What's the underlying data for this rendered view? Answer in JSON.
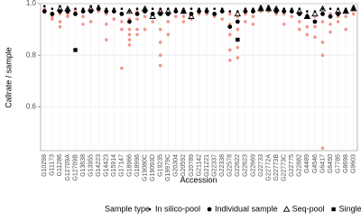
{
  "chart_data": {
    "type": "scatter",
    "y_label": "Callrate / sample",
    "x_label": "Accession",
    "legend_title": "Sample type",
    "categories": [
      "G10298",
      "G11173",
      "G11286",
      "G12709A",
      "G12709B",
      "G13638",
      "G13955",
      "G14223",
      "G14423",
      "G15914",
      "G17147",
      "G18966",
      "G18996",
      "G19080C",
      "G19093D",
      "G19235",
      "G19979C",
      "G20304",
      "G20592",
      "G20789",
      "G21142",
      "G21221",
      "G22337",
      "G22338",
      "G22578",
      "G22622",
      "G22623",
      "G22669",
      "G22733",
      "G22772A",
      "G22773B",
      "G22773C",
      "G22775",
      "G22882",
      "G4489",
      "G4546",
      "G6417",
      "G6450",
      "G7785",
      "G8698",
      "G9603"
    ],
    "ylim": [
      0.43,
      1.0
    ],
    "yticks": [
      0.6,
      0.8,
      {
        "value": 1,
        "label": "1.0"
      }
    ],
    "grid": true,
    "legend": "bottom",
    "series": [
      {
        "name": "In silico-pool",
        "shape": "dot",
        "color": "#000000",
        "values": [
          0.99,
          0.98,
          0.99,
          0.98,
          0.98,
          0.98,
          0.99,
          0.99,
          0.98,
          0.98,
          0.98,
          0.97,
          0.98,
          0.98,
          0.98,
          0.98,
          0.98,
          0.98,
          0.98,
          0.98,
          0.98,
          0.98,
          0.98,
          0.98,
          0.97,
          0.97,
          0.98,
          0.98,
          0.99,
          0.99,
          0.98,
          0.98,
          0.98,
          0.98,
          0.97,
          0.97,
          0.98,
          0.98,
          0.98,
          0.98,
          0.99
        ]
      },
      {
        "name": "Individual sample",
        "shape": "circle",
        "color": "#000000",
        "replicate_color": "#e8604c",
        "values": [
          0.97,
          0.96,
          0.97,
          0.97,
          0.96,
          0.97,
          0.97,
          0.98,
          0.97,
          0.97,
          0.96,
          0.93,
          0.96,
          0.97,
          0.96,
          0.96,
          0.96,
          0.97,
          0.97,
          0.96,
          0.97,
          0.97,
          0.96,
          0.97,
          0.91,
          0.93,
          0.97,
          0.97,
          0.98,
          0.98,
          0.97,
          0.97,
          0.97,
          0.96,
          0.95,
          0.93,
          0.96,
          0.95,
          0.96,
          0.97,
          0.98
        ],
        "replicates": [
          [
            0.98,
            0.97
          ],
          [
            0.95,
            0.94
          ],
          [
            0.97,
            0.96,
            0.93,
            0.91
          ],
          [
            0.97,
            0.96,
            0.95
          ],
          [
            0.97,
            0.96
          ],
          [
            0.97,
            0.95,
            0.92
          ],
          [
            0.98,
            0.97,
            0.93
          ],
          [
            0.98,
            0.97
          ],
          [
            0.97,
            0.96,
            0.92,
            0.86
          ],
          [
            0.97,
            0.94
          ],
          [
            0.96,
            0.93,
            0.9,
            0.75
          ],
          [
            0.94,
            0.9,
            0.88,
            0.86,
            0.84
          ],
          [
            0.97,
            0.94,
            0.9,
            0.88
          ],
          [
            0.97,
            0.95,
            0.9
          ],
          [
            0.96,
            0.93
          ],
          [
            0.97,
            0.9,
            0.85,
            0.8,
            0.76
          ],
          [
            0.96,
            0.93,
            0.88
          ],
          [
            0.97,
            0.95
          ],
          [
            0.97,
            0.95,
            0.93
          ],
          [
            0.96,
            0.94
          ],
          [
            0.97,
            0.96
          ],
          [
            0.97,
            0.96
          ],
          [
            0.96,
            0.95
          ],
          [
            0.97,
            0.94
          ],
          [
            0.96,
            0.92,
            0.88,
            0.82,
            0.78
          ],
          [
            0.95,
            0.9,
            0.86,
            0.83,
            0.79
          ],
          [
            0.97,
            0.96,
            0.93
          ],
          [
            0.97,
            0.95,
            0.92
          ],
          [
            0.98,
            0.97
          ],
          [
            0.98,
            0.97
          ],
          [
            0.97,
            0.96
          ],
          [
            0.97,
            0.96,
            0.92
          ],
          [
            0.97,
            0.95
          ],
          [
            0.96,
            0.93,
            0.9
          ],
          [
            0.95,
            0.91,
            0.88
          ],
          [
            0.95,
            0.91,
            0.87
          ],
          [
            0.96,
            0.93,
            0.85,
            0.8,
            0.44
          ],
          [
            0.96,
            0.92,
            0.89
          ],
          [
            0.95,
            0.93
          ],
          [
            0.97,
            0.95,
            0.9
          ],
          [
            0.98,
            0.96
          ]
        ]
      },
      {
        "name": "Seq-pool",
        "shape": "triangle",
        "color": "#000000",
        "values": [
          null,
          null,
          0.98,
          0.98,
          null,
          null,
          0.98,
          null,
          null,
          null,
          null,
          0.97,
          null,
          0.98,
          0.95,
          0.97,
          0.97,
          null,
          0.97,
          0.95,
          null,
          null,
          null,
          null,
          null,
          0.96,
          null,
          null,
          0.98,
          0.98,
          0.98,
          null,
          null,
          0.97,
          0.95,
          0.96,
          0.98,
          null,
          0.97,
          0.97,
          0.98
        ]
      },
      {
        "name": "Single plant",
        "shape": "square",
        "color": "#000000",
        "values": [
          null,
          null,
          null,
          null,
          0.82,
          null,
          null,
          null,
          null,
          null,
          null,
          null,
          null,
          null,
          null,
          null,
          null,
          null,
          null,
          null,
          null,
          null,
          null,
          null,
          null,
          0.86,
          null,
          null,
          null,
          null,
          null,
          null,
          null,
          null,
          null,
          null,
          null,
          null,
          null,
          null,
          null
        ]
      }
    ]
  }
}
